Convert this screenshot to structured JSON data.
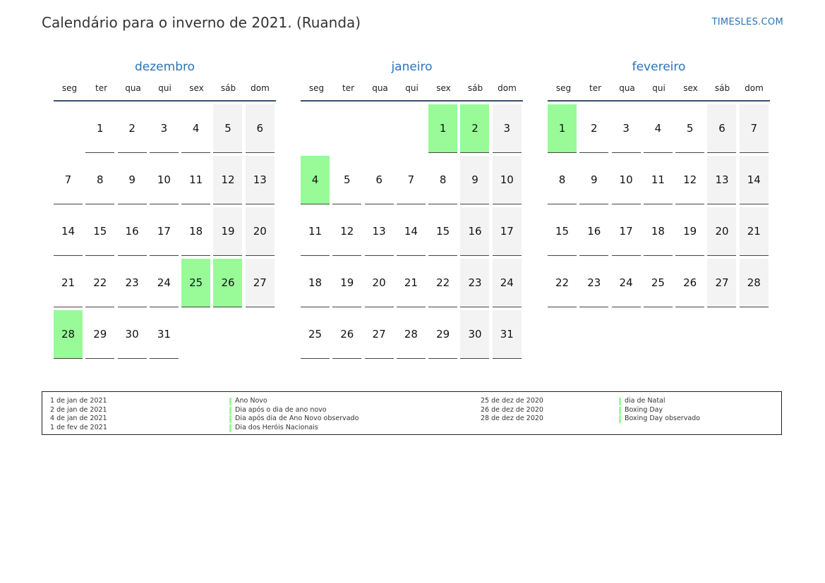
{
  "title": "Calendário para o inverno de 2021. (Ruanda)",
  "brand": "TIMESLES.COM",
  "weekdays": [
    "seg",
    "ter",
    "qua",
    "qui",
    "sex",
    "sáb",
    "dom"
  ],
  "colors": {
    "holiday": "#98fb98",
    "weekend": "#f3f3f3",
    "accent": "#2b73b6"
  },
  "months": [
    {
      "name": "dezembro",
      "start_offset": 1,
      "days": 31,
      "holidays": [
        25,
        26,
        28
      ]
    },
    {
      "name": "janeiro",
      "start_offset": 4,
      "days": 31,
      "holidays": [
        1,
        2,
        4
      ]
    },
    {
      "name": "fevereiro",
      "start_offset": 0,
      "days": 28,
      "holidays": [
        1
      ]
    }
  ],
  "legend": {
    "left": [
      {
        "date": "1 de jan de 2021",
        "name": "Ano Novo"
      },
      {
        "date": "2 de jan de 2021",
        "name": "Dia após o dia de ano novo"
      },
      {
        "date": "4 de jan de 2021",
        "name": "Dia após dia de Ano Novo observado"
      },
      {
        "date": "1 de fev de 2021",
        "name": "Dia dos Heróis Nacionais"
      }
    ],
    "right": [
      {
        "date": "25 de dez de 2020",
        "name": "dia de Natal"
      },
      {
        "date": "26 de dez de 2020",
        "name": "Boxing Day"
      },
      {
        "date": "28 de dez de 2020",
        "name": "Boxing Day observado"
      }
    ]
  }
}
